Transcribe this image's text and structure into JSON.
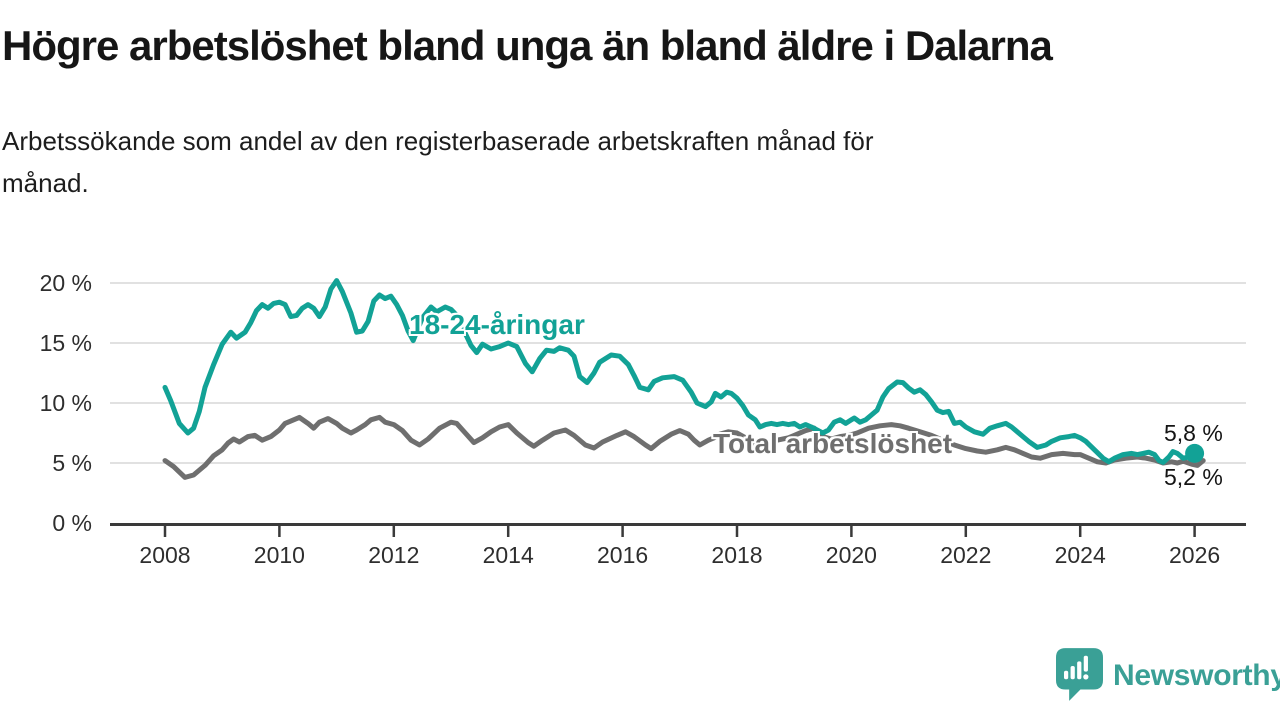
{
  "header": {
    "title": "Högre arbetslöshet bland unga än bland äldre i Dalarna",
    "subtitle_line1": "Arbetssökande som andel av den registerbaserade arbetskraften månad för",
    "subtitle_line2": "månad."
  },
  "colors": {
    "youth": "#12a296",
    "total": "#6f6f6f",
    "axis": "#3a3a3a",
    "grid": "#e1e1e1",
    "logo": "#3aa096"
  },
  "footer": {
    "brand": "Newsworthy"
  },
  "chart_data": {
    "type": "line",
    "x_unit": "decimal_year",
    "xlim": [
      2007.6,
      2026.9
    ],
    "ylim": [
      0,
      21
    ],
    "grid": "horizontal",
    "y_axis": {
      "ticks": [
        {
          "value": 0,
          "label": "0 %"
        },
        {
          "value": 5,
          "label": "5 %"
        },
        {
          "value": 10,
          "label": "10 %"
        },
        {
          "value": 15,
          "label": "15 %"
        },
        {
          "value": 20,
          "label": "20 %"
        }
      ]
    },
    "x_axis": {
      "ticks": [
        {
          "year": 2008,
          "label": "2008"
        },
        {
          "year": 2010,
          "label": "2010"
        },
        {
          "year": 2012,
          "label": "2012"
        },
        {
          "year": 2014,
          "label": "2014"
        },
        {
          "year": 2016,
          "label": "2016"
        },
        {
          "year": 2018,
          "label": "2018"
        },
        {
          "year": 2020,
          "label": "2020"
        },
        {
          "year": 2022,
          "label": "2022"
        },
        {
          "year": 2024,
          "label": "2024"
        },
        {
          "year": 2026,
          "label": "2026"
        }
      ]
    },
    "series": [
      {
        "id": "total-series",
        "name": "Total arbetslöshet",
        "label": "Total arbetslöshet",
        "end_label": "5,2 %",
        "end_value": 5.2,
        "color": "#6f6f6f",
        "end_dot": false,
        "points": [
          [
            2008.0,
            5.2
          ],
          [
            2008.15,
            4.7
          ],
          [
            2008.35,
            3.8
          ],
          [
            2008.5,
            4.0
          ],
          [
            2008.7,
            4.8
          ],
          [
            2008.85,
            5.6
          ],
          [
            2009.0,
            6.1
          ],
          [
            2009.1,
            6.65
          ],
          [
            2009.2,
            7.0
          ],
          [
            2009.3,
            6.75
          ],
          [
            2009.45,
            7.2
          ],
          [
            2009.57,
            7.3
          ],
          [
            2009.7,
            6.9
          ],
          [
            2009.85,
            7.2
          ],
          [
            2010.0,
            7.75
          ],
          [
            2010.1,
            8.3
          ],
          [
            2010.25,
            8.6
          ],
          [
            2010.35,
            8.8
          ],
          [
            2010.5,
            8.3
          ],
          [
            2010.6,
            7.9
          ],
          [
            2010.7,
            8.4
          ],
          [
            2010.85,
            8.7
          ],
          [
            2011.0,
            8.3
          ],
          [
            2011.1,
            7.9
          ],
          [
            2011.25,
            7.5
          ],
          [
            2011.35,
            7.75
          ],
          [
            2011.5,
            8.2
          ],
          [
            2011.6,
            8.6
          ],
          [
            2011.75,
            8.8
          ],
          [
            2011.85,
            8.4
          ],
          [
            2012.0,
            8.2
          ],
          [
            2012.15,
            7.7
          ],
          [
            2012.3,
            6.9
          ],
          [
            2012.45,
            6.5
          ],
          [
            2012.6,
            7.0
          ],
          [
            2012.8,
            7.9
          ],
          [
            2013.0,
            8.4
          ],
          [
            2013.1,
            8.3
          ],
          [
            2013.25,
            7.5
          ],
          [
            2013.4,
            6.7
          ],
          [
            2013.55,
            7.1
          ],
          [
            2013.7,
            7.6
          ],
          [
            2013.85,
            8.0
          ],
          [
            2014.0,
            8.2
          ],
          [
            2014.15,
            7.5
          ],
          [
            2014.35,
            6.7
          ],
          [
            2014.45,
            6.4
          ],
          [
            2014.6,
            6.9
          ],
          [
            2014.8,
            7.5
          ],
          [
            2015.0,
            7.75
          ],
          [
            2015.15,
            7.3
          ],
          [
            2015.35,
            6.5
          ],
          [
            2015.5,
            6.25
          ],
          [
            2015.65,
            6.75
          ],
          [
            2015.9,
            7.3
          ],
          [
            2016.05,
            7.6
          ],
          [
            2016.2,
            7.2
          ],
          [
            2016.4,
            6.5
          ],
          [
            2016.5,
            6.2
          ],
          [
            2016.65,
            6.8
          ],
          [
            2016.85,
            7.4
          ],
          [
            2017.0,
            7.7
          ],
          [
            2017.15,
            7.4
          ],
          [
            2017.25,
            6.9
          ],
          [
            2017.35,
            6.5
          ],
          [
            2017.5,
            6.9
          ],
          [
            2017.6,
            7.1
          ],
          [
            2017.7,
            7.4
          ],
          [
            2017.85,
            7.6
          ],
          [
            2018.0,
            7.5
          ],
          [
            2018.15,
            7.1
          ],
          [
            2018.35,
            6.5
          ],
          [
            2018.5,
            6.6
          ],
          [
            2018.7,
            6.9
          ],
          [
            2018.9,
            7.1
          ],
          [
            2019.0,
            7.3
          ],
          [
            2019.2,
            7.7
          ],
          [
            2019.35,
            7.9
          ],
          [
            2019.5,
            7.2
          ],
          [
            2019.65,
            7.0
          ],
          [
            2019.8,
            7.2
          ],
          [
            2019.95,
            7.3
          ],
          [
            2020.1,
            7.5
          ],
          [
            2020.3,
            7.9
          ],
          [
            2020.5,
            8.1
          ],
          [
            2020.7,
            8.2
          ],
          [
            2020.85,
            8.1
          ],
          [
            2021.0,
            7.9
          ],
          [
            2021.2,
            7.6
          ],
          [
            2021.4,
            7.3
          ],
          [
            2021.6,
            6.9
          ],
          [
            2021.8,
            6.5
          ],
          [
            2022.0,
            6.2
          ],
          [
            2022.2,
            6.0
          ],
          [
            2022.35,
            5.9
          ],
          [
            2022.55,
            6.1
          ],
          [
            2022.7,
            6.3
          ],
          [
            2022.85,
            6.1
          ],
          [
            2023.0,
            5.8
          ],
          [
            2023.15,
            5.5
          ],
          [
            2023.3,
            5.4
          ],
          [
            2023.5,
            5.7
          ],
          [
            2023.7,
            5.8
          ],
          [
            2023.9,
            5.7
          ],
          [
            2024.0,
            5.7
          ],
          [
            2024.15,
            5.4
          ],
          [
            2024.3,
            5.1
          ],
          [
            2024.45,
            5.0
          ],
          [
            2024.6,
            5.25
          ],
          [
            2024.8,
            5.4
          ],
          [
            2025.0,
            5.5
          ],
          [
            2025.15,
            5.4
          ],
          [
            2025.3,
            5.25
          ],
          [
            2025.45,
            5.0
          ],
          [
            2025.6,
            5.1
          ],
          [
            2025.7,
            5.0
          ],
          [
            2025.8,
            5.15
          ],
          [
            2025.95,
            4.9
          ],
          [
            2026.05,
            4.8
          ],
          [
            2026.15,
            5.2
          ]
        ]
      },
      {
        "id": "youth-series",
        "name": "18-24-åringar",
        "label": "18-24-åringar",
        "end_label": "5,8 %",
        "end_value": 5.8,
        "color": "#12a296",
        "end_dot": true,
        "points": [
          [
            2008.0,
            11.3
          ],
          [
            2008.1,
            10.2
          ],
          [
            2008.25,
            8.3
          ],
          [
            2008.4,
            7.5
          ],
          [
            2008.5,
            7.9
          ],
          [
            2008.6,
            9.3
          ],
          [
            2008.7,
            11.3
          ],
          [
            2008.85,
            13.2
          ],
          [
            2009.0,
            14.9
          ],
          [
            2009.15,
            15.9
          ],
          [
            2009.25,
            15.4
          ],
          [
            2009.4,
            15.9
          ],
          [
            2009.5,
            16.7
          ],
          [
            2009.6,
            17.7
          ],
          [
            2009.7,
            18.2
          ],
          [
            2009.8,
            17.9
          ],
          [
            2009.9,
            18.3
          ],
          [
            2010.0,
            18.4
          ],
          [
            2010.1,
            18.2
          ],
          [
            2010.2,
            17.2
          ],
          [
            2010.3,
            17.3
          ],
          [
            2010.4,
            17.9
          ],
          [
            2010.5,
            18.2
          ],
          [
            2010.6,
            17.9
          ],
          [
            2010.7,
            17.2
          ],
          [
            2010.8,
            18.0
          ],
          [
            2010.9,
            19.5
          ],
          [
            2011.0,
            20.2
          ],
          [
            2011.1,
            19.3
          ],
          [
            2011.25,
            17.5
          ],
          [
            2011.35,
            15.9
          ],
          [
            2011.45,
            16.0
          ],
          [
            2011.55,
            16.8
          ],
          [
            2011.65,
            18.5
          ],
          [
            2011.75,
            19.0
          ],
          [
            2011.85,
            18.7
          ],
          [
            2011.95,
            18.9
          ],
          [
            2012.05,
            18.2
          ],
          [
            2012.15,
            17.3
          ],
          [
            2012.25,
            16.0
          ],
          [
            2012.34,
            15.2
          ],
          [
            2012.5,
            17.1
          ],
          [
            2012.65,
            18.0
          ],
          [
            2012.75,
            17.6
          ],
          [
            2012.9,
            18.0
          ],
          [
            2013.0,
            17.8
          ],
          [
            2013.1,
            17.3
          ],
          [
            2013.25,
            15.8
          ],
          [
            2013.35,
            14.8
          ],
          [
            2013.45,
            14.2
          ],
          [
            2013.55,
            14.9
          ],
          [
            2013.7,
            14.5
          ],
          [
            2013.85,
            14.7
          ],
          [
            2014.0,
            15.0
          ],
          [
            2014.15,
            14.7
          ],
          [
            2014.3,
            13.3
          ],
          [
            2014.42,
            12.6
          ],
          [
            2014.55,
            13.7
          ],
          [
            2014.67,
            14.4
          ],
          [
            2014.8,
            14.3
          ],
          [
            2014.9,
            14.6
          ],
          [
            2015.05,
            14.4
          ],
          [
            2015.15,
            13.9
          ],
          [
            2015.25,
            12.2
          ],
          [
            2015.38,
            11.7
          ],
          [
            2015.5,
            12.5
          ],
          [
            2015.6,
            13.4
          ],
          [
            2015.7,
            13.7
          ],
          [
            2015.8,
            14.0
          ],
          [
            2015.95,
            13.9
          ],
          [
            2016.1,
            13.2
          ],
          [
            2016.2,
            12.3
          ],
          [
            2016.3,
            11.3
          ],
          [
            2016.45,
            11.1
          ],
          [
            2016.55,
            11.8
          ],
          [
            2016.7,
            12.1
          ],
          [
            2016.9,
            12.2
          ],
          [
            2017.05,
            11.9
          ],
          [
            2017.2,
            10.9
          ],
          [
            2017.3,
            10.0
          ],
          [
            2017.45,
            9.7
          ],
          [
            2017.55,
            10.1
          ],
          [
            2017.62,
            10.8
          ],
          [
            2017.72,
            10.5
          ],
          [
            2017.82,
            10.9
          ],
          [
            2017.9,
            10.8
          ],
          [
            2018.0,
            10.4
          ],
          [
            2018.1,
            9.8
          ],
          [
            2018.2,
            9.0
          ],
          [
            2018.32,
            8.6
          ],
          [
            2018.4,
            8.0
          ],
          [
            2018.5,
            8.2
          ],
          [
            2018.6,
            8.3
          ],
          [
            2018.7,
            8.2
          ],
          [
            2018.8,
            8.3
          ],
          [
            2018.9,
            8.2
          ],
          [
            2019.0,
            8.3
          ],
          [
            2019.1,
            8.0
          ],
          [
            2019.2,
            8.2
          ],
          [
            2019.3,
            8.0
          ],
          [
            2019.4,
            7.75
          ],
          [
            2019.5,
            7.5
          ],
          [
            2019.6,
            7.75
          ],
          [
            2019.7,
            8.4
          ],
          [
            2019.8,
            8.6
          ],
          [
            2019.9,
            8.3
          ],
          [
            2020.0,
            8.6
          ],
          [
            2020.05,
            8.75
          ],
          [
            2020.15,
            8.4
          ],
          [
            2020.25,
            8.6
          ],
          [
            2020.35,
            9.0
          ],
          [
            2020.45,
            9.4
          ],
          [
            2020.55,
            10.5
          ],
          [
            2020.65,
            11.2
          ],
          [
            2020.8,
            11.75
          ],
          [
            2020.9,
            11.7
          ],
          [
            2021.0,
            11.25
          ],
          [
            2021.1,
            10.9
          ],
          [
            2021.2,
            11.1
          ],
          [
            2021.3,
            10.7
          ],
          [
            2021.4,
            10.1
          ],
          [
            2021.5,
            9.4
          ],
          [
            2021.6,
            9.2
          ],
          [
            2021.7,
            9.3
          ],
          [
            2021.8,
            8.3
          ],
          [
            2021.9,
            8.4
          ],
          [
            2022.0,
            8.0
          ],
          [
            2022.15,
            7.6
          ],
          [
            2022.3,
            7.4
          ],
          [
            2022.42,
            7.9
          ],
          [
            2022.55,
            8.1
          ],
          [
            2022.7,
            8.3
          ],
          [
            2022.8,
            8.0
          ],
          [
            2022.9,
            7.6
          ],
          [
            2023.0,
            7.2
          ],
          [
            2023.1,
            6.8
          ],
          [
            2023.25,
            6.3
          ],
          [
            2023.4,
            6.5
          ],
          [
            2023.5,
            6.8
          ],
          [
            2023.65,
            7.1
          ],
          [
            2023.8,
            7.2
          ],
          [
            2023.9,
            7.3
          ],
          [
            2024.0,
            7.1
          ],
          [
            2024.1,
            6.8
          ],
          [
            2024.25,
            6.1
          ],
          [
            2024.4,
            5.4
          ],
          [
            2024.5,
            5.1
          ],
          [
            2024.6,
            5.4
          ],
          [
            2024.75,
            5.7
          ],
          [
            2024.9,
            5.8
          ],
          [
            2025.0,
            5.7
          ],
          [
            2025.1,
            5.8
          ],
          [
            2025.2,
            5.9
          ],
          [
            2025.3,
            5.7
          ],
          [
            2025.38,
            5.2
          ],
          [
            2025.45,
            5.05
          ],
          [
            2025.55,
            5.5
          ],
          [
            2025.62,
            5.95
          ],
          [
            2025.7,
            5.8
          ],
          [
            2025.8,
            5.4
          ],
          [
            2025.9,
            5.5
          ],
          [
            2026.0,
            5.8
          ]
        ]
      }
    ]
  }
}
